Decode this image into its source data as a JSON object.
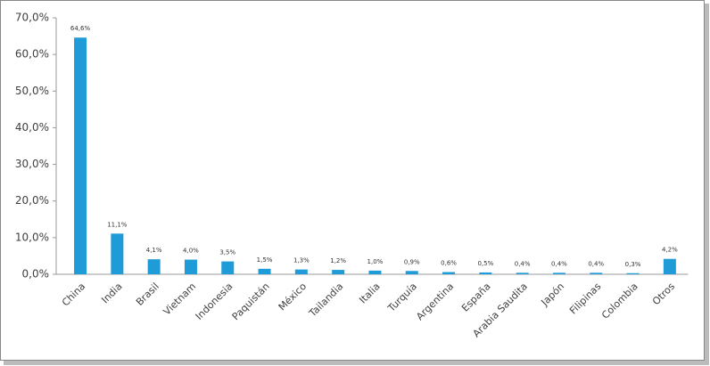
{
  "chart_data": {
    "type": "bar",
    "categories": [
      "China",
      "India",
      "Brasil",
      "Vietnam",
      "Indonesia",
      "Paquistán",
      "México",
      "Tailandia",
      "Italia",
      "Turquía",
      "Argentina",
      "España",
      "Arabia Saudita",
      "Japón",
      "Filipinas",
      "Colombia",
      "Otros"
    ],
    "values": [
      64.6,
      11.1,
      4.1,
      4.0,
      3.5,
      1.5,
      1.3,
      1.2,
      1.0,
      0.9,
      0.6,
      0.5,
      0.4,
      0.4,
      0.4,
      0.3,
      4.2
    ],
    "value_labels": [
      "64,6%",
      "11,1%",
      "4,1%",
      "4,0%",
      "3,5%",
      "1,5%",
      "1,3%",
      "1,2%",
      "1,0%",
      "0,9%",
      "0,6%",
      "0,5%",
      "0,4%",
      "0,4%",
      "0,4%",
      "0,3%",
      "4,2%"
    ],
    "color": "#1f9bd7",
    "ylim": [
      0,
      70
    ],
    "yticks": [
      {
        "value": 0,
        "label": "0,0%"
      },
      {
        "value": 10,
        "label": "10,0%"
      },
      {
        "value": 20,
        "label": "20,0%"
      },
      {
        "value": 30,
        "label": "30,0%"
      },
      {
        "value": 40,
        "label": "40,0%"
      },
      {
        "value": 50,
        "label": "50,0%"
      },
      {
        "value": 60,
        "label": "60,0%"
      },
      {
        "value": 70,
        "label": "70,0%"
      }
    ],
    "grid": false
  }
}
